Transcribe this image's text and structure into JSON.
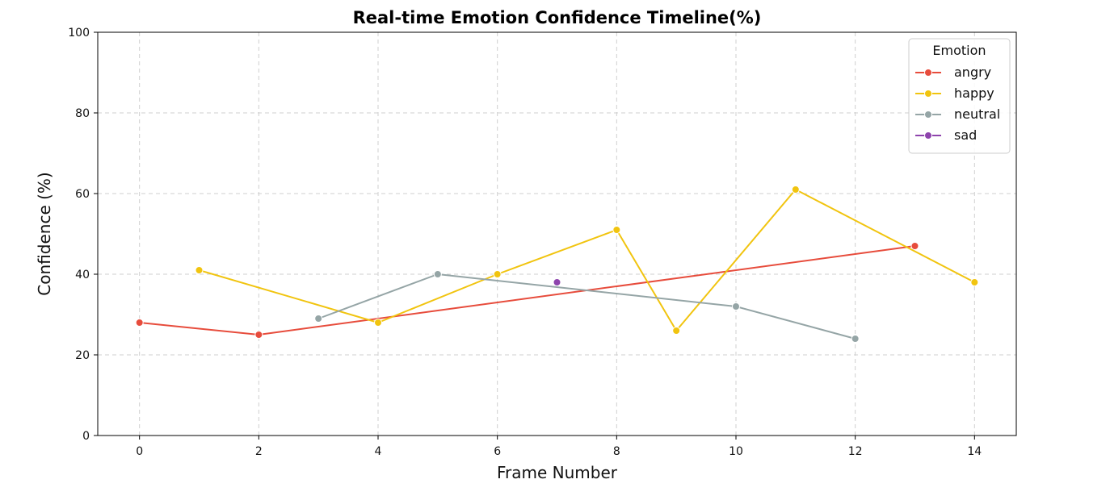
{
  "chart_data": {
    "type": "line",
    "title": "Real-time Emotion Confidence Timeline(%)",
    "xlabel": "Frame Number",
    "ylabel": "Confidence (%)",
    "xlim": [
      -0.7,
      14.7
    ],
    "ylim": [
      0,
      100
    ],
    "xticks": [
      0,
      2,
      4,
      6,
      8,
      10,
      12,
      14
    ],
    "yticks": [
      0,
      20,
      40,
      60,
      80,
      100
    ],
    "grid": true,
    "legend": {
      "title": "Emotion",
      "placement": "top-right"
    },
    "series": [
      {
        "name": "angry",
        "color": "#e74c3c",
        "x": [
          0,
          2,
          13
        ],
        "y": [
          28,
          25,
          47
        ]
      },
      {
        "name": "happy",
        "color": "#f1c40f",
        "x": [
          1,
          4,
          6,
          8,
          9,
          11,
          14
        ],
        "y": [
          41,
          28,
          40,
          51,
          26,
          61,
          38
        ]
      },
      {
        "name": "neutral",
        "color": "#95a5a6",
        "x": [
          3,
          5,
          10,
          12
        ],
        "y": [
          29,
          40,
          32,
          24
        ]
      },
      {
        "name": "sad",
        "color": "#8e44ad",
        "x": [
          7
        ],
        "y": [
          38
        ]
      }
    ]
  }
}
